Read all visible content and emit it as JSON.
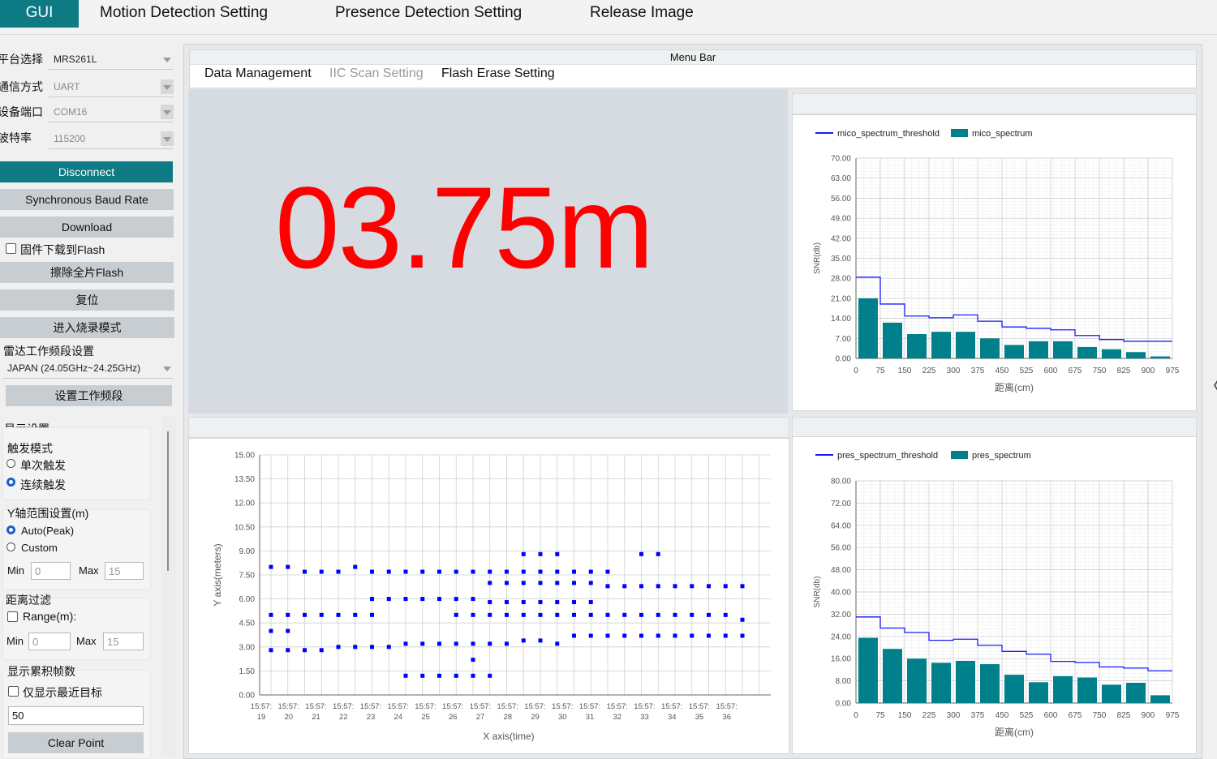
{
  "top_tabs": [
    {
      "label": "GUI",
      "active": true
    },
    {
      "label": "Motion Detection Setting"
    },
    {
      "label": "Presence Detection Setting"
    },
    {
      "label": "Release Image"
    }
  ],
  "left": {
    "platform_label": "平台选择",
    "platform_value": "MRS261L",
    "comm_label": "通信方式",
    "comm_value": "UART",
    "port_label": "设备端口",
    "port_value": "COM16",
    "baud_label": "波特率",
    "baud_value": "115200",
    "disconnect": "Disconnect",
    "sync_baud": "Synchronous Baud Rate",
    "download": "Download",
    "flash_checkbox": "固件下载到Flash",
    "erase_flash": "擦除全片Flash",
    "reset": "复位",
    "burn_mode": "进入烧录模式",
    "band_label": "雷达工作频段设置",
    "band_value": "JAPAN (24.05GHz~24.25GHz)",
    "set_band": "设置工作频段",
    "display_settings": "显示设置",
    "trigger_mode": "触发模式",
    "single_trigger": "单次触发",
    "continuous_trigger": "连续触发",
    "y_range": "Y轴范围设置(m)",
    "auto_peak": "Auto(Peak)",
    "custom": "Custom",
    "min_label": "Min",
    "max_label": "Max",
    "y_min": "0",
    "y_max": "15",
    "distance_filter": "距离过滤",
    "range_m": "Range(m):",
    "d_min": "0",
    "d_max": "15",
    "frames_label": "显示累积帧数",
    "nearest_only": "仅显示最近目标",
    "frames_value": "50",
    "clear_point": "Clear Point"
  },
  "menu_bar": {
    "title": "Menu Bar",
    "items": [
      {
        "label": "Data Management",
        "enabled": true
      },
      {
        "label": "IIC Scan Setting",
        "enabled": false
      },
      {
        "label": "Flash Erase Setting",
        "enabled": true
      }
    ]
  },
  "distance_display": {
    "value": "03.75m",
    "color": "#ff0000"
  },
  "collapse_arrow": "〈",
  "colors": {
    "accent": "#0e7a84",
    "bar": "#00808b",
    "threshold_line": "#1a1aff",
    "scatter_point": "#0000ff"
  },
  "chart_data": [
    {
      "type": "bar",
      "name": "mico_spectrum_chart",
      "legend": [
        "mico_spectrum_threshold",
        "mico_spectrum"
      ],
      "xlabel": "距离(cm)",
      "ylabel": "SNR(db)",
      "x_ticks": [
        "0",
        "75",
        "150",
        "225",
        "300",
        "375",
        "450",
        "525",
        "600",
        "675",
        "750",
        "825",
        "900",
        "975"
      ],
      "y_ticks": [
        "0.00",
        "7.00",
        "14.00",
        "21.00",
        "28.00",
        "35.00",
        "42.00",
        "49.00",
        "56.00",
        "63.00",
        "70.00"
      ],
      "ylim": [
        0,
        70
      ],
      "xlim": [
        0,
        975
      ],
      "bin_width": 75,
      "bars": [
        21,
        12.5,
        8.5,
        9.3,
        9.3,
        7,
        4.7,
        6,
        6,
        4,
        3.2,
        2.2,
        0.7
      ],
      "threshold": [
        28.4,
        19,
        14.8,
        14.2,
        15.2,
        13,
        11,
        10.5,
        10,
        8,
        6.6,
        6,
        6
      ]
    },
    {
      "type": "scatter",
      "name": "target_scatter_chart",
      "xlabel": "X axis(time)",
      "ylabel": "Y axis(meters)",
      "y_ticks": [
        "0.00",
        "1.50",
        "3.00",
        "4.50",
        "6.00",
        "7.50",
        "9.00",
        "10.50",
        "12.00",
        "13.50",
        "15.00"
      ],
      "x_ticks": [
        [
          "15:57:",
          "19"
        ],
        [
          "15:57:",
          "20"
        ],
        [
          "15:57:",
          "21"
        ],
        [
          "15:57:",
          "22"
        ],
        [
          "15:57:",
          "23"
        ],
        [
          "15:57:",
          "24"
        ],
        [
          "15:57:",
          "25"
        ],
        [
          "15:57:",
          "26"
        ],
        [
          "15:57:",
          "27"
        ],
        [
          "15:57:",
          "28"
        ],
        [
          "15:57:",
          "29"
        ],
        [
          "15:57:",
          "30"
        ],
        [
          "15:57:",
          "31"
        ],
        [
          "15:57:",
          "32"
        ],
        [
          "15:57:",
          "33"
        ],
        [
          "15:57:",
          "34"
        ],
        [
          "15:57:",
          "35"
        ],
        [
          "15:57:",
          "36"
        ]
      ],
      "ylim": [
        0,
        15
      ],
      "columns": [
        [
          8,
          5,
          4,
          2.8
        ],
        [
          8,
          5,
          4,
          2.8
        ],
        [
          7.7,
          5,
          2.8
        ],
        [
          7.7,
          5,
          2.8
        ],
        [
          7.7,
          5,
          3
        ],
        [
          8,
          5,
          3
        ],
        [
          7.7,
          6,
          5,
          3
        ],
        [
          7.7,
          6,
          3
        ],
        [
          7.7,
          6,
          3.2,
          1.2
        ],
        [
          7.7,
          6,
          3.2,
          1.2
        ],
        [
          7.7,
          6,
          3.2,
          1.2
        ],
        [
          7.7,
          6,
          5,
          3.2,
          1.2
        ],
        [
          7.7,
          6,
          5,
          3.2,
          2.2,
          1.2
        ],
        [
          7.7,
          7,
          5.8,
          5,
          3.2,
          1.2
        ],
        [
          7.7,
          7,
          5.8,
          5,
          3.2
        ],
        [
          8.8,
          7.7,
          7,
          5.8,
          5,
          3.4
        ],
        [
          8.8,
          7.7,
          7,
          5.8,
          5,
          3.4
        ],
        [
          8.8,
          7.7,
          7,
          5.8,
          5,
          3.2
        ],
        [
          7.7,
          7,
          5.8,
          5,
          3.7
        ],
        [
          7.7,
          7,
          5.8,
          5,
          3.7
        ],
        [
          7.7,
          6.8,
          5,
          3.7
        ],
        [
          6.8,
          5,
          3.7
        ],
        [
          8.8,
          6.8,
          5,
          3.7
        ],
        [
          8.8,
          6.8,
          5,
          3.7
        ],
        [
          6.8,
          5,
          3.7
        ],
        [
          6.8,
          5,
          3.7
        ],
        [
          6.8,
          5,
          3.7
        ],
        [
          6.8,
          5,
          3.7
        ],
        [
          6.8,
          4.7,
          3.7
        ]
      ]
    },
    {
      "type": "bar",
      "name": "pres_spectrum_chart",
      "legend": [
        "pres_spectrum_threshold",
        "pres_spectrum"
      ],
      "xlabel": "距离(cm)",
      "ylabel": "SNR(db)",
      "x_ticks": [
        "0",
        "75",
        "150",
        "225",
        "300",
        "375",
        "450",
        "525",
        "600",
        "675",
        "750",
        "825",
        "900",
        "975"
      ],
      "y_ticks": [
        "0.00",
        "8.00",
        "16.00",
        "24.00",
        "32.00",
        "40.00",
        "48.00",
        "56.00",
        "64.00",
        "72.00",
        "80.00"
      ],
      "ylim": [
        0,
        80
      ],
      "xlim": [
        0,
        975
      ],
      "bin_width": 75,
      "bars": [
        23.5,
        19.5,
        16,
        14.5,
        15.2,
        14,
        10.2,
        7.5,
        9.7,
        9.2,
        6.6,
        7.3,
        2.8
      ],
      "threshold": [
        31,
        27,
        25.4,
        22.6,
        23,
        20.8,
        18.6,
        17.6,
        15,
        14.6,
        13,
        12.6,
        11.6
      ]
    }
  ]
}
